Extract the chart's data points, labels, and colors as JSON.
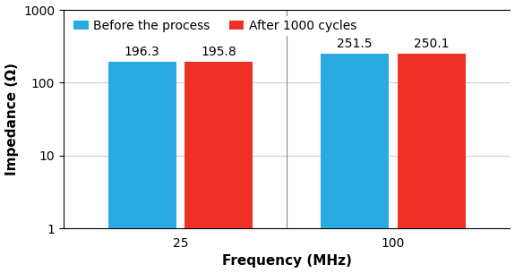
{
  "categories": [
    "25",
    "100"
  ],
  "before_values": [
    196.3,
    251.5
  ],
  "after_values": [
    195.8,
    250.1
  ],
  "before_label": "Before the process",
  "after_label": "After 1000 cycles",
  "before_color": "#29ABE2",
  "after_color": "#EE3124",
  "xlabel": "Frequency (MHz)",
  "ylabel": "Impedance (Ω)",
  "ylim": [
    1,
    1000
  ],
  "bar_width": 0.32,
  "label_fontsize": 10,
  "axis_fontsize": 11,
  "legend_fontsize": 10,
  "annotation_fontsize": 10,
  "grid_color": "#CCCCCC",
  "divider_color": "#888888"
}
